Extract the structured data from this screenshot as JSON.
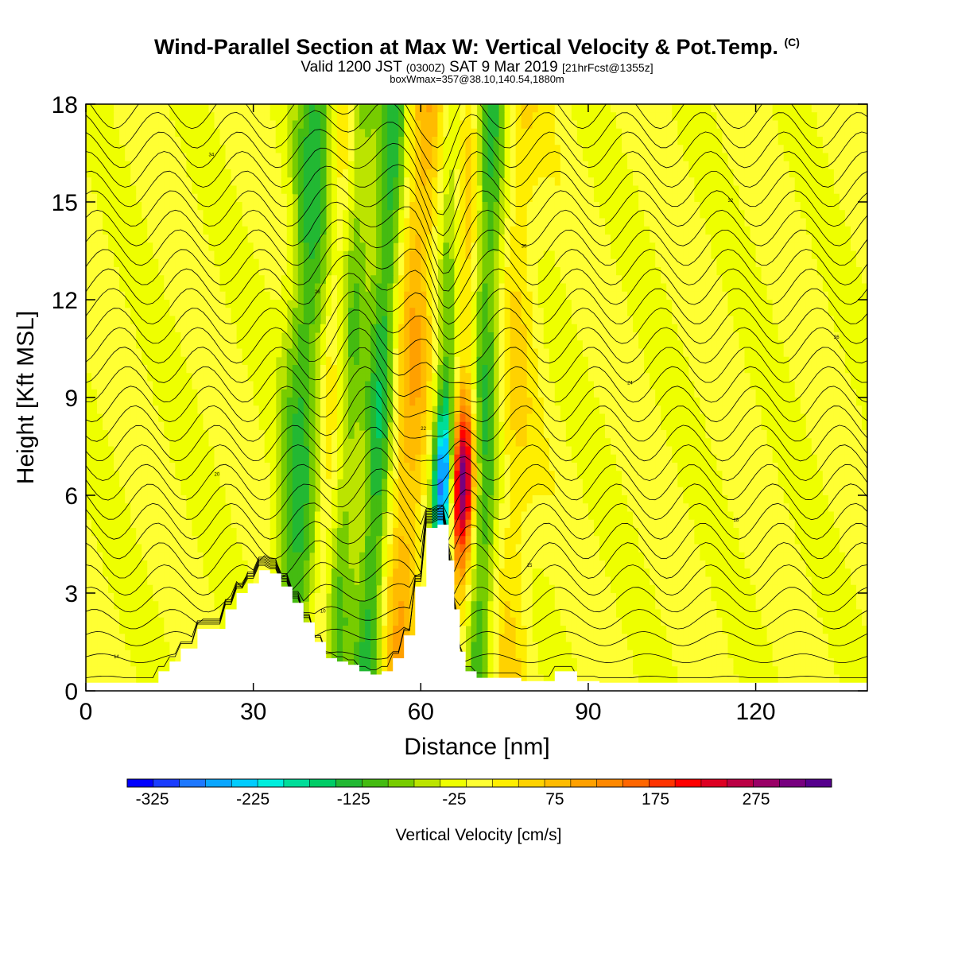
{
  "title": {
    "main": "Wind-Parallel Section at Max W: Vertical Velocity & Pot.Temp.",
    "copyright": "(C)",
    "valid_prefix": "Valid 1200 JST",
    "valid_utc": "(0300Z)",
    "valid_date": "SAT 9 Mar 2019",
    "forecast": "[21hrFcst@1355z]",
    "box_info": "boxWmax=357@38.10,140.54,1880m"
  },
  "chart_data": {
    "type": "heatmap",
    "title": "Wind-Parallel Section at Max W: Vertical Velocity & Pot.Temp.",
    "xlabel": "Distance [nm]",
    "ylabel": "Height [Kft MSL]",
    "xlim": [
      0,
      140
    ],
    "ylim": [
      0,
      18
    ],
    "x_ticks": [
      0,
      30,
      60,
      90,
      120
    ],
    "y_ticks": [
      0,
      3,
      6,
      9,
      12,
      15,
      18
    ],
    "colorbar": {
      "label": "Vertical Velocity [cm/s]",
      "min": -350,
      "max": 350,
      "ticks": [
        -325,
        -225,
        -125,
        -25,
        75,
        175,
        275
      ],
      "colors": [
        "#0000ff",
        "#1a3cff",
        "#1e78ff",
        "#0aa6ff",
        "#00ccff",
        "#00eedd",
        "#00dd99",
        "#00cc66",
        "#22b833",
        "#44bb11",
        "#77cc00",
        "#bbe400",
        "#eeff00",
        "#ffff33",
        "#ffee00",
        "#ffd200",
        "#ffbb00",
        "#ffa000",
        "#ff8800",
        "#ff6600",
        "#ff3300",
        "#ff0000",
        "#dd0022",
        "#bb0044",
        "#990066",
        "#77007f",
        "#55008c"
      ]
    },
    "bands": [
      {
        "x": 35,
        "w": -30,
        "peak": 90
      },
      {
        "x": 38,
        "w": 3.5,
        "peak": -110
      },
      {
        "x": 43,
        "w": 2.0,
        "peak": 40
      },
      {
        "x": 46.5,
        "w": 2.5,
        "peak": -70
      },
      {
        "x": 52,
        "w": 2.5,
        "peak": -125
      },
      {
        "x": 57.5,
        "w": 3.5,
        "peak": 90
      },
      {
        "x": 64,
        "w": 2.0,
        "peak": -260
      },
      {
        "x": 67.5,
        "w": 2.2,
        "peak": 280
      },
      {
        "x": 71,
        "w": 3.0,
        "peak": -120
      },
      {
        "x": 76,
        "w": 4.0,
        "peak": 50
      }
    ],
    "terrain_kft": [
      [
        0,
        0.25
      ],
      [
        12,
        0.25
      ],
      [
        13,
        0.6
      ],
      [
        15,
        0.9
      ],
      [
        17,
        1.3
      ],
      [
        20,
        1.9
      ],
      [
        23,
        1.9
      ],
      [
        25,
        2.5
      ],
      [
        27,
        3.0
      ],
      [
        29,
        3.3
      ],
      [
        31,
        3.7
      ],
      [
        33,
        3.6
      ],
      [
        35,
        3.2
      ],
      [
        37,
        2.7
      ],
      [
        39,
        2.1
      ],
      [
        41,
        1.5
      ],
      [
        43,
        1.0
      ],
      [
        45,
        0.9
      ],
      [
        47,
        0.8
      ],
      [
        49,
        0.6
      ],
      [
        51,
        0.5
      ],
      [
        53,
        0.6
      ],
      [
        55,
        1.0
      ],
      [
        57,
        1.7
      ],
      [
        59,
        3.2
      ],
      [
        61,
        5.0
      ],
      [
        63,
        5.1
      ],
      [
        65,
        4.0
      ],
      [
        66,
        2.5
      ],
      [
        67,
        1.2
      ],
      [
        68,
        0.6
      ],
      [
        70,
        0.4
      ],
      [
        78,
        0.3
      ],
      [
        82,
        0.3
      ],
      [
        84,
        0.6
      ],
      [
        86,
        0.6
      ],
      [
        88,
        0.3
      ],
      [
        92,
        0.25
      ],
      [
        140,
        0.25
      ]
    ],
    "isentropes_labels": [
      "14",
      "10",
      "15",
      "18",
      "20",
      "22",
      "24",
      "26",
      "28",
      "30",
      "32",
      "34"
    ]
  }
}
